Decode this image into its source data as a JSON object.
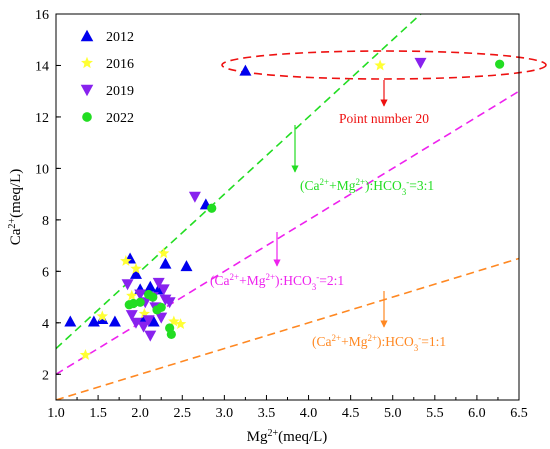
{
  "chart_data": {
    "type": "scatter",
    "xlabel": {
      "base": "Mg",
      "sup": "2+",
      "rest": "(meq/L)"
    },
    "ylabel": {
      "base": "Ca",
      "sup": "2+",
      "rest": "(meq/L)"
    },
    "xlim": [
      1.0,
      6.5
    ],
    "ylim": [
      1,
      16
    ],
    "x_ticks": [
      "1.0",
      "1.5",
      "2.0",
      "2.5",
      "3.0",
      "3.5",
      "4.0",
      "4.5",
      "5.0",
      "5.5",
      "6.0",
      "6.5"
    ],
    "y_ticks": [
      "2",
      "4",
      "6",
      "8",
      "10",
      "12",
      "14",
      "16"
    ],
    "legend_position": "top-left",
    "series": [
      {
        "name": "2012",
        "marker": "triangle-up",
        "color": "#0000ee",
        "points": [
          [
            1.17,
            4.05
          ],
          [
            1.45,
            4.05
          ],
          [
            1.55,
            4.15
          ],
          [
            1.7,
            4.05
          ],
          [
            1.88,
            6.5
          ],
          [
            1.95,
            5.9
          ],
          [
            2.0,
            5.3
          ],
          [
            2.05,
            4.2
          ],
          [
            2.12,
            5.4
          ],
          [
            2.16,
            4.05
          ],
          [
            2.22,
            5.3
          ],
          [
            2.3,
            6.3
          ],
          [
            2.55,
            6.2
          ],
          [
            2.78,
            8.6
          ],
          [
            3.25,
            13.8
          ]
        ]
      },
      {
        "name": "2016",
        "marker": "star",
        "color": "#ffff33",
        "points": [
          [
            1.35,
            2.75
          ],
          [
            1.55,
            4.25
          ],
          [
            1.83,
            6.4
          ],
          [
            1.9,
            5.05
          ],
          [
            1.95,
            6.1
          ],
          [
            2.05,
            4.35
          ],
          [
            2.28,
            6.7
          ],
          [
            2.4,
            4.05
          ],
          [
            2.48,
            3.95
          ],
          [
            4.85,
            14.0
          ]
        ]
      },
      {
        "name": "2019",
        "marker": "triangle-down",
        "color": "#8822ee",
        "points": [
          [
            1.85,
            5.5
          ],
          [
            1.9,
            4.3
          ],
          [
            1.95,
            4.0
          ],
          [
            2.0,
            5.1
          ],
          [
            2.04,
            3.85
          ],
          [
            2.06,
            4.8
          ],
          [
            2.1,
            4.1
          ],
          [
            2.12,
            3.5
          ],
          [
            2.15,
            5.0
          ],
          [
            2.18,
            4.6
          ],
          [
            2.22,
            5.55
          ],
          [
            2.25,
            4.2
          ],
          [
            2.28,
            5.3
          ],
          [
            2.3,
            4.9
          ],
          [
            2.35,
            4.8
          ],
          [
            2.65,
            8.9
          ],
          [
            5.33,
            14.1
          ]
        ]
      },
      {
        "name": "2022",
        "marker": "circle",
        "color": "#22dd22",
        "points": [
          [
            1.87,
            4.7
          ],
          [
            1.92,
            4.75
          ],
          [
            2.0,
            4.8
          ],
          [
            2.1,
            5.1
          ],
          [
            2.15,
            5.0
          ],
          [
            2.2,
            4.5
          ],
          [
            2.25,
            4.6
          ],
          [
            2.35,
            3.8
          ],
          [
            2.37,
            3.55
          ],
          [
            2.85,
            8.45
          ],
          [
            6.27,
            14.05
          ]
        ]
      }
    ],
    "reference_lines": [
      {
        "name": "3:1",
        "slope": 3,
        "color": "#22dd22",
        "label": {
          "a": "(Ca",
          "a_sup": "2+",
          "b": "+Mg",
          "b_sup": "2+",
          "c": "):HCO",
          "c_sub": "3",
          "c_sup": "-",
          "d": "=3:1"
        }
      },
      {
        "name": "2:1",
        "slope": 2,
        "color": "#ee22ee",
        "label": {
          "a": "(Ca",
          "a_sup": "2+",
          "b": "+Mg",
          "b_sup": "2+",
          "c": "):HCO",
          "c_sub": "3",
          "c_sup": "-",
          "d": "=2:1"
        }
      },
      {
        "name": "1:1",
        "slope": 1,
        "color": "#ff8822",
        "label": {
          "a": "(Ca",
          "a_sup": "2+",
          "b": "+Mg",
          "b_sup": "2+",
          "c": "):HCO",
          "c_sub": "3",
          "c_sup": "-",
          "d": "=1:1"
        }
      }
    ],
    "annotation": {
      "text": "Point number 20",
      "color": "#ee1111"
    }
  }
}
